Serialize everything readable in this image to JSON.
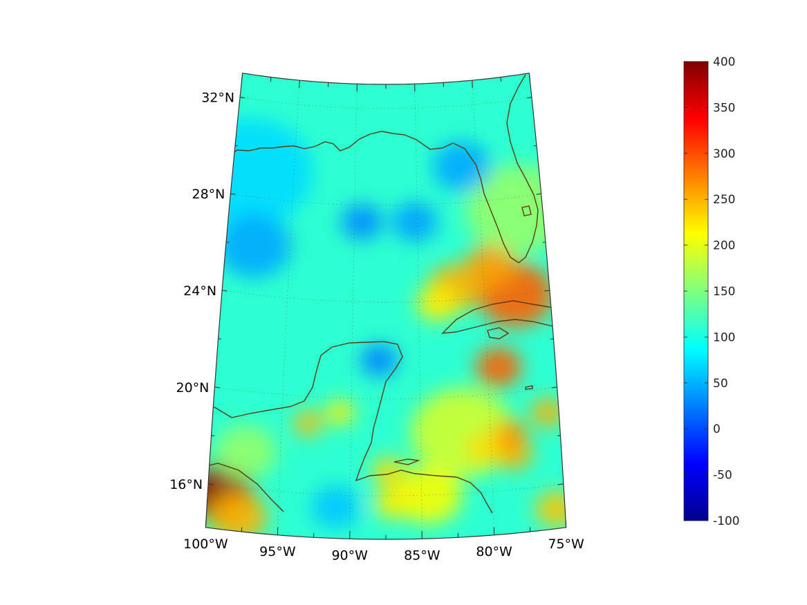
{
  "map": {
    "projection": "lambert-conformal-conic",
    "lon_range": [
      -100,
      -75
    ],
    "lat_range": [
      14.2,
      33
    ],
    "background_color": "#ffffff",
    "coastline_color": "#5a3a10",
    "grid": true,
    "grid_style": "dotted",
    "lat_ticks": [
      {
        "value": 32,
        "label": "32°N"
      },
      {
        "value": 28,
        "label": "28°N"
      },
      {
        "value": 24,
        "label": "24°N"
      },
      {
        "value": 20,
        "label": "20°N"
      },
      {
        "value": 16,
        "label": "16°N"
      }
    ],
    "lon_ticks": [
      {
        "value": -100,
        "label": "100°W"
      },
      {
        "value": -95,
        "label": "95°W"
      },
      {
        "value": -90,
        "label": "90°W"
      },
      {
        "value": -85,
        "label": "85°W"
      },
      {
        "value": -80,
        "label": "80°W"
      },
      {
        "value": -75,
        "label": "75°W"
      }
    ],
    "field_hotspots": [
      {
        "lon": -99.2,
        "lat": 15.7,
        "value": 390,
        "radius_deg": 1.6
      },
      {
        "lon": -97.8,
        "lat": 14.8,
        "value": 250,
        "radius_deg": 1.4
      },
      {
        "lon": -77.6,
        "lat": 24.0,
        "value": 290,
        "radius_deg": 1.8
      },
      {
        "lon": -79.4,
        "lat": 25.3,
        "value": 260,
        "radius_deg": 1.2
      },
      {
        "lon": -82.2,
        "lat": 24.5,
        "value": 250,
        "radius_deg": 1.3
      },
      {
        "lon": -83.6,
        "lat": 23.9,
        "value": 220,
        "radius_deg": 1.0
      },
      {
        "lon": -79.2,
        "lat": 21.1,
        "value": 290,
        "radius_deg": 1.1
      },
      {
        "lon": -78.6,
        "lat": 18.3,
        "value": 265,
        "radius_deg": 0.8
      },
      {
        "lon": -78.4,
        "lat": 17.5,
        "value": 250,
        "radius_deg": 0.9
      },
      {
        "lon": -80.6,
        "lat": 17.8,
        "value": 230,
        "radius_deg": 0.8
      },
      {
        "lon": -75.8,
        "lat": 19.0,
        "value": 250,
        "radius_deg": 0.8
      },
      {
        "lon": -93.1,
        "lat": 18.9,
        "value": 245,
        "radius_deg": 0.7
      },
      {
        "lon": -90.8,
        "lat": 19.4,
        "value": 220,
        "radius_deg": 0.7
      },
      {
        "lon": -87.3,
        "lat": 17.0,
        "value": 230,
        "radius_deg": 0.8
      },
      {
        "lon": -87.0,
        "lat": 15.7,
        "value": 220,
        "radius_deg": 0.9
      },
      {
        "lon": -75.6,
        "lat": 15.0,
        "value": 240,
        "radius_deg": 1.0
      },
      {
        "lon": -84.5,
        "lat": 16.0,
        "value": 210,
        "radius_deg": 1.6
      },
      {
        "lon": -82.0,
        "lat": 18.5,
        "value": 190,
        "radius_deg": 2.5
      },
      {
        "lon": -77.0,
        "lat": 27.5,
        "value": 160,
        "radius_deg": 2.5
      },
      {
        "lon": -97.5,
        "lat": 17.5,
        "value": 160,
        "radius_deg": 1.5
      },
      {
        "lon": -89.4,
        "lat": 27.3,
        "value": 30,
        "radius_deg": 1.0
      },
      {
        "lon": -88.0,
        "lat": 21.6,
        "value": 25,
        "radius_deg": 0.9
      },
      {
        "lon": -85.2,
        "lat": 27.3,
        "value": 40,
        "radius_deg": 1.1
      },
      {
        "lon": -97.8,
        "lat": 26.0,
        "value": 45,
        "radius_deg": 1.8
      },
      {
        "lon": -81.3,
        "lat": 29.5,
        "value": 45,
        "radius_deg": 1.4
      },
      {
        "lon": -98.5,
        "lat": 29.0,
        "value": 70,
        "radius_deg": 3.0
      },
      {
        "lon": -91.0,
        "lat": 15.5,
        "value": 60,
        "radius_deg": 1.2
      }
    ]
  },
  "colorbar": {
    "min": -100,
    "max": 400,
    "colormap": "jet",
    "tick_labels": [
      "400",
      "350",
      "300",
      "250",
      "200",
      "150",
      "100",
      "50",
      "0",
      "-50",
      "-100"
    ]
  }
}
